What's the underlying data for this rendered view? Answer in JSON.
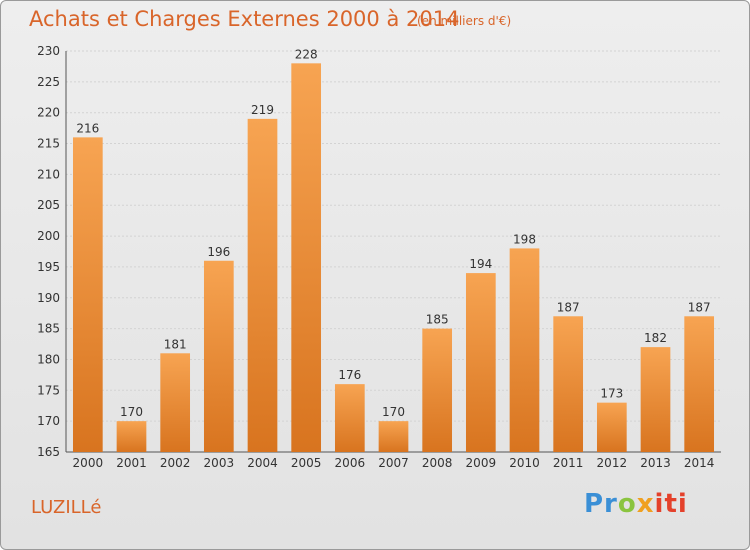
{
  "title": "Achats et Charges Externes 2000 à 2014",
  "unit": "(en milliers d'€)",
  "location": "LUZILLé",
  "logo": {
    "parts": [
      "Pr",
      "o",
      "x",
      "iti"
    ]
  },
  "colors": {
    "accent": "#d9652a",
    "bar_top": "#f7a452",
    "bar_bottom": "#d8741f"
  },
  "chart_data": {
    "type": "bar",
    "categories": [
      "2000",
      "2001",
      "2002",
      "2003",
      "2004",
      "2005",
      "2006",
      "2007",
      "2008",
      "2009",
      "2010",
      "2011",
      "2012",
      "2013",
      "2014"
    ],
    "values": [
      216,
      170,
      181,
      196,
      219,
      228,
      176,
      170,
      185,
      194,
      198,
      187,
      173,
      182,
      187
    ],
    "title": "Achats et Charges Externes 2000 à 2014",
    "xlabel": "",
    "ylabel": "",
    "ylim": [
      165,
      230
    ],
    "yticks": [
      165,
      170,
      175,
      180,
      185,
      190,
      195,
      200,
      205,
      210,
      215,
      220,
      225,
      230
    ],
    "grid": true,
    "legend": "none"
  }
}
